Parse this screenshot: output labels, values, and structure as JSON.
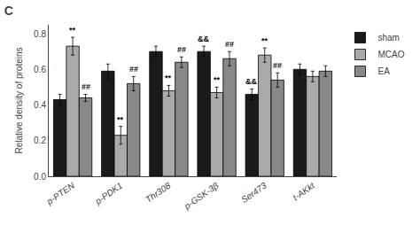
{
  "chart_data": {
    "type": "bar",
    "title": "C",
    "ylabel": "Relative density of proteins",
    "categories": [
      "p-PTEN",
      "p-PDK1",
      "Thr308",
      "p-GSK-3β",
      "Ser473",
      "t-AKkt"
    ],
    "series": [
      {
        "name": "sham",
        "color": "#1a1a1a",
        "values": [
          0.43,
          0.59,
          0.7,
          0.7,
          0.46,
          0.6
        ],
        "errors": [
          0.03,
          0.04,
          0.03,
          0.03,
          0.03,
          0.03
        ]
      },
      {
        "name": "MCAO",
        "color": "#aaaaaa",
        "values": [
          0.73,
          0.23,
          0.48,
          0.47,
          0.68,
          0.56
        ],
        "errors": [
          0.05,
          0.05,
          0.03,
          0.03,
          0.04,
          0.03
        ]
      },
      {
        "name": "EA",
        "color": "#888888",
        "values": [
          0.44,
          0.52,
          0.64,
          0.66,
          0.54,
          0.59
        ],
        "errors": [
          0.02,
          0.04,
          0.03,
          0.04,
          0.04,
          0.03
        ]
      }
    ],
    "annotations": [
      {
        "category": "p-PTEN",
        "series": "MCAO",
        "text": "**"
      },
      {
        "category": "p-PTEN",
        "series": "EA",
        "text": "##"
      },
      {
        "category": "p-PDK1",
        "series": "MCAO",
        "text": "**"
      },
      {
        "category": "p-PDK1",
        "series": "EA",
        "text": "##"
      },
      {
        "category": "Thr308",
        "series": "MCAO",
        "text": "**"
      },
      {
        "category": "Thr308",
        "series": "EA",
        "text": "##"
      },
      {
        "category": "p-GSK-3β",
        "series": "MCAO",
        "text": "**"
      },
      {
        "category": "p-GSK-3β",
        "series": "EA",
        "text": "##"
      },
      {
        "category": "p-GSK-3β",
        "series": "sham",
        "text": "&&"
      },
      {
        "category": "Ser473",
        "series": "MCAO",
        "text": "**"
      },
      {
        "category": "Ser473",
        "series": "EA",
        "text": "##"
      },
      {
        "category": "Ser473",
        "series": "sham",
        "text": "&&"
      }
    ],
    "ylim": [
      0.0,
      0.85
    ],
    "yticks": [
      {
        "value": 0.0,
        "label": "0.0"
      },
      0.2,
      0.4,
      0.6,
      0.8
    ],
    "grid": false,
    "legend": "right"
  }
}
